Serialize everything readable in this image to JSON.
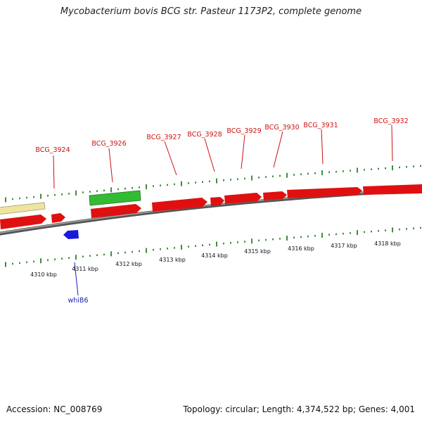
{
  "title": "Mycobacterium bovis BCG str. Pasteur 1173P2, complete genome",
  "footer": {
    "accession": "Accession: NC_008769",
    "summary": "Topology: circular; Length: 4,374,522 bp; Genes: 4,001"
  },
  "colors": {
    "cds": "#e01010",
    "other_feature": "#efe4a0",
    "green_feature": "#33bb33",
    "blue_feature": "#1a1add",
    "backbone": "#777777",
    "tick": "#2e7d2e",
    "top_label": "#cc1111",
    "bottom_label": "#1a1ab0"
  },
  "kbp_labels": [
    "4310 kbp",
    "4311 kbp",
    "4312 kbp",
    "4313 kbp",
    "4314 kbp",
    "4315 kbp",
    "4316 kbp",
    "4317 kbp",
    "4318 kbp"
  ],
  "top_gene_labels": [
    "BCG_3924",
    "BCG_3926",
    "BCG_3927",
    "BCG_3928",
    "BCG_3929",
    "BCG_3930",
    "BCG_3931",
    "BCG_3932"
  ],
  "bottom_gene_labels": [
    "whiB6"
  ]
}
